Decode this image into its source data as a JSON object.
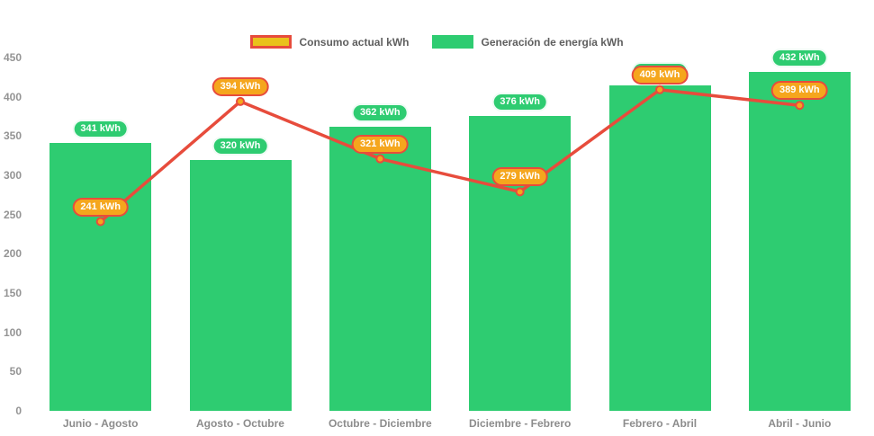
{
  "colors": {
    "background": "#ffffff",
    "bar_green": "#2ecc71",
    "line_red": "#e74c3c",
    "point_orange": "#f5a61d",
    "legend_yellow": "#e9c21b",
    "tick_text": "#949494",
    "axis_text": "#8c8c8c",
    "legend_text": "#5f5f5f"
  },
  "legend": {
    "items": [
      {
        "label": "Consumo actual kWh",
        "swatch_fill": "#e9c21b",
        "swatch_border": "#e74c3c"
      },
      {
        "label": "Generación de energía kWh",
        "swatch_fill": "#2ecc71",
        "swatch_border": "#2ecc71"
      }
    ]
  },
  "chart_data": {
    "type": "bar",
    "title": "",
    "categories": [
      "Junio - Agosto",
      "Agosto - Octubre",
      "Octubre - Diciembre",
      "Diciembre - Febrero",
      "Febrero - Abril",
      "Abril - Junio"
    ],
    "series": [
      {
        "name": "Generación de energía kWh",
        "type": "bar",
        "color": "#2ecc71",
        "label_fill": "#2ecc71",
        "values": [
          341,
          320,
          362,
          376,
          415,
          432
        ],
        "value_labels": [
          "341 kWh",
          "320 kWh",
          "362 kWh",
          "376 kWh",
          "415 kWh",
          "432 kWh"
        ]
      },
      {
        "name": "Consumo actual kWh",
        "type": "line",
        "line_color": "#e74c3c",
        "point_color": "#f5a61d",
        "label_fill": "#f5a61d",
        "label_border": "#e74c3c",
        "values": [
          241,
          394,
          321,
          279,
          409,
          389
        ],
        "value_labels": [
          "241 kWh",
          "394 kWh",
          "321 kWh",
          "279 kWh",
          "409 kWh",
          "389 kWh"
        ]
      }
    ],
    "ylim": [
      0,
      450
    ],
    "yticks": [
      0,
      50,
      100,
      150,
      200,
      250,
      300,
      350,
      400,
      450
    ],
    "grid": false,
    "legend_position": "top",
    "value_label_suffix": " kWh"
  }
}
